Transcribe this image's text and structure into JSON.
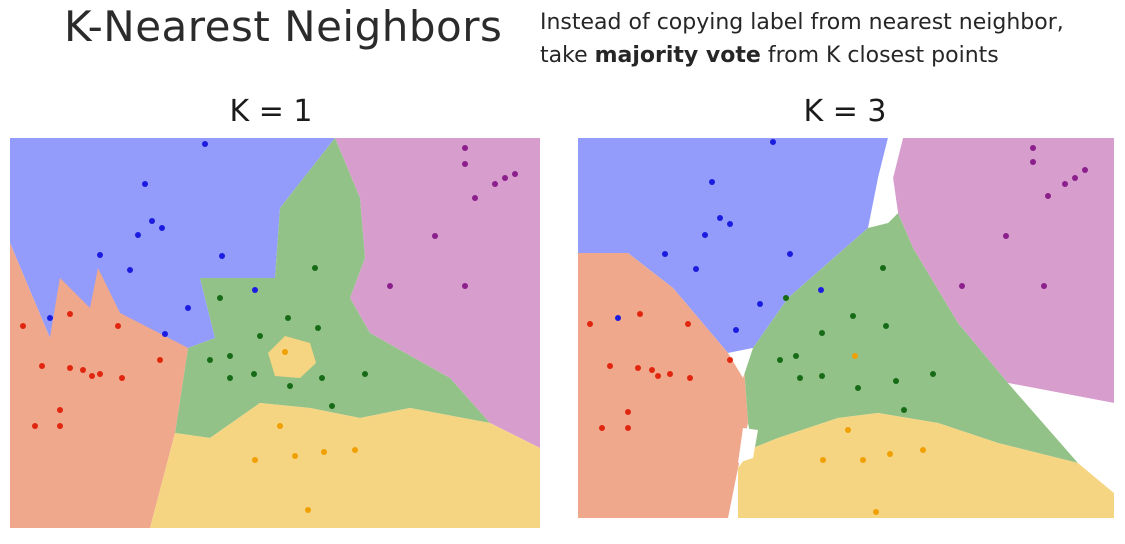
{
  "title": "K-Nearest Neighbors",
  "description": {
    "line1": "Instead of copying label from nearest neighbor,",
    "line2_pre": "take ",
    "line2_bold": "majority vote",
    "line2_post": " from K closest points"
  },
  "panels": [
    {
      "label": "K = 1"
    },
    {
      "label": "K = 3"
    }
  ],
  "colors": {
    "blue_region": "#949cfb",
    "purple_region": "#d79ecd",
    "green_region": "#93c288",
    "red_region": "#f0a88c",
    "yellow_region": "#f6d582",
    "white_region": "#ffffff",
    "blue_point": "#1c1ce0",
    "purple_point": "#8b1f8b",
    "green_point": "#176b17",
    "red_point": "#e0260e",
    "yellow_point": "#f0a000"
  }
}
